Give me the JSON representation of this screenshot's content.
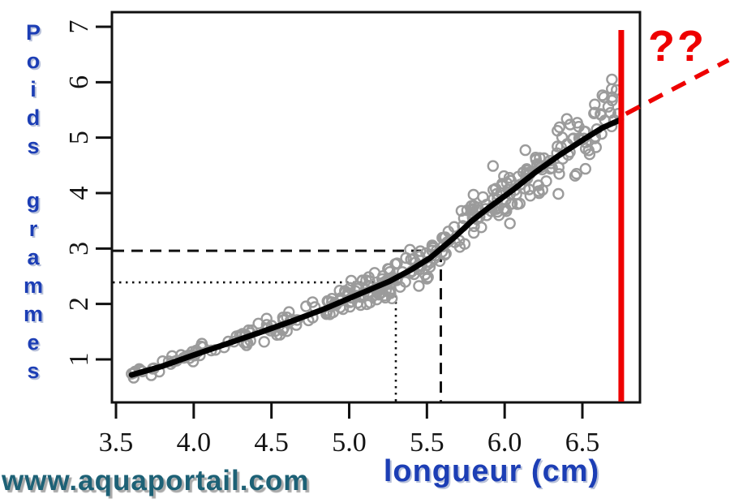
{
  "figure": {
    "background": "#ffffff",
    "watermark": "www.aquaportail.com",
    "watermark_color": "#1d6176"
  },
  "axes": {
    "x_label": "longueur (cm)",
    "y_label": "Poids grammes",
    "label_color": "#1c3eb5",
    "tick_color": "#141414"
  },
  "annotation": {
    "label": "??",
    "color": "#ee0000"
  },
  "chart_data": {
    "type": "scatter",
    "title": "",
    "xlabel": "longueur (cm)",
    "ylabel": "Poids grammes",
    "x_ticks": [
      "3.5",
      "4.0",
      "4.5",
      "5.0",
      "5.5",
      "6.0",
      "6.5"
    ],
    "y_ticks": [
      "1",
      "2",
      "3",
      "4",
      "5",
      "6",
      "7"
    ],
    "x_tick_values": [
      3.5,
      4.0,
      4.5,
      5.0,
      5.5,
      6.0,
      6.5
    ],
    "y_tick_values": [
      1,
      2,
      3,
      4,
      5,
      6,
      7
    ],
    "xlim": [
      3.36,
      6.87
    ],
    "ylim": [
      0.03,
      7.05
    ],
    "grid": false,
    "legend": null,
    "scatter_points": {
      "description": "cloud of ~350 gray open-circle observations of weight (g) vs length (cm) scattered around the trend curve",
      "marker": "open-circle",
      "color": "#9b9b9b",
      "n_uniform": 215,
      "n_dense_band": 135,
      "dense_band_x_range": [
        4.85,
        6.65
      ],
      "x_range": [
        3.6,
        6.74
      ],
      "relative_noise_sd": 0.062,
      "seed": 20
    },
    "highlight_points": [
      [
        6.69,
        6.05
      ],
      [
        6.72,
        5.86
      ],
      [
        6.58,
        5.6
      ],
      [
        6.64,
        5.73
      ]
    ],
    "trend_curve": {
      "color": "#000000",
      "points": [
        [
          3.6,
          0.72
        ],
        [
          3.8,
          0.88
        ],
        [
          4.01,
          1.09
        ],
        [
          4.21,
          1.28
        ],
        [
          4.42,
          1.48
        ],
        [
          4.63,
          1.69
        ],
        [
          4.84,
          1.91
        ],
        [
          5.05,
          2.16
        ],
        [
          5.26,
          2.41
        ],
        [
          5.4,
          2.62
        ],
        [
          5.52,
          2.83
        ],
        [
          5.6,
          3.02
        ],
        [
          5.68,
          3.21
        ],
        [
          5.79,
          3.5
        ],
        [
          5.89,
          3.72
        ],
        [
          6.05,
          4.05
        ],
        [
          6.2,
          4.38
        ],
        [
          6.35,
          4.68
        ],
        [
          6.51,
          4.97
        ],
        [
          6.63,
          5.18
        ],
        [
          6.75,
          5.33
        ]
      ]
    },
    "reference_marks": {
      "long_dash": {
        "x": 5.6,
        "y": 2.96
      },
      "dotted": {
        "x": 5.3,
        "y": 2.39
      }
    },
    "red_vertical_line_x": 6.75,
    "red_projection": {
      "from": [
        6.78,
        5.43
      ],
      "to": [
        7.44,
        6.4
      ],
      "label": "??",
      "color": "#ee0000"
    }
  }
}
